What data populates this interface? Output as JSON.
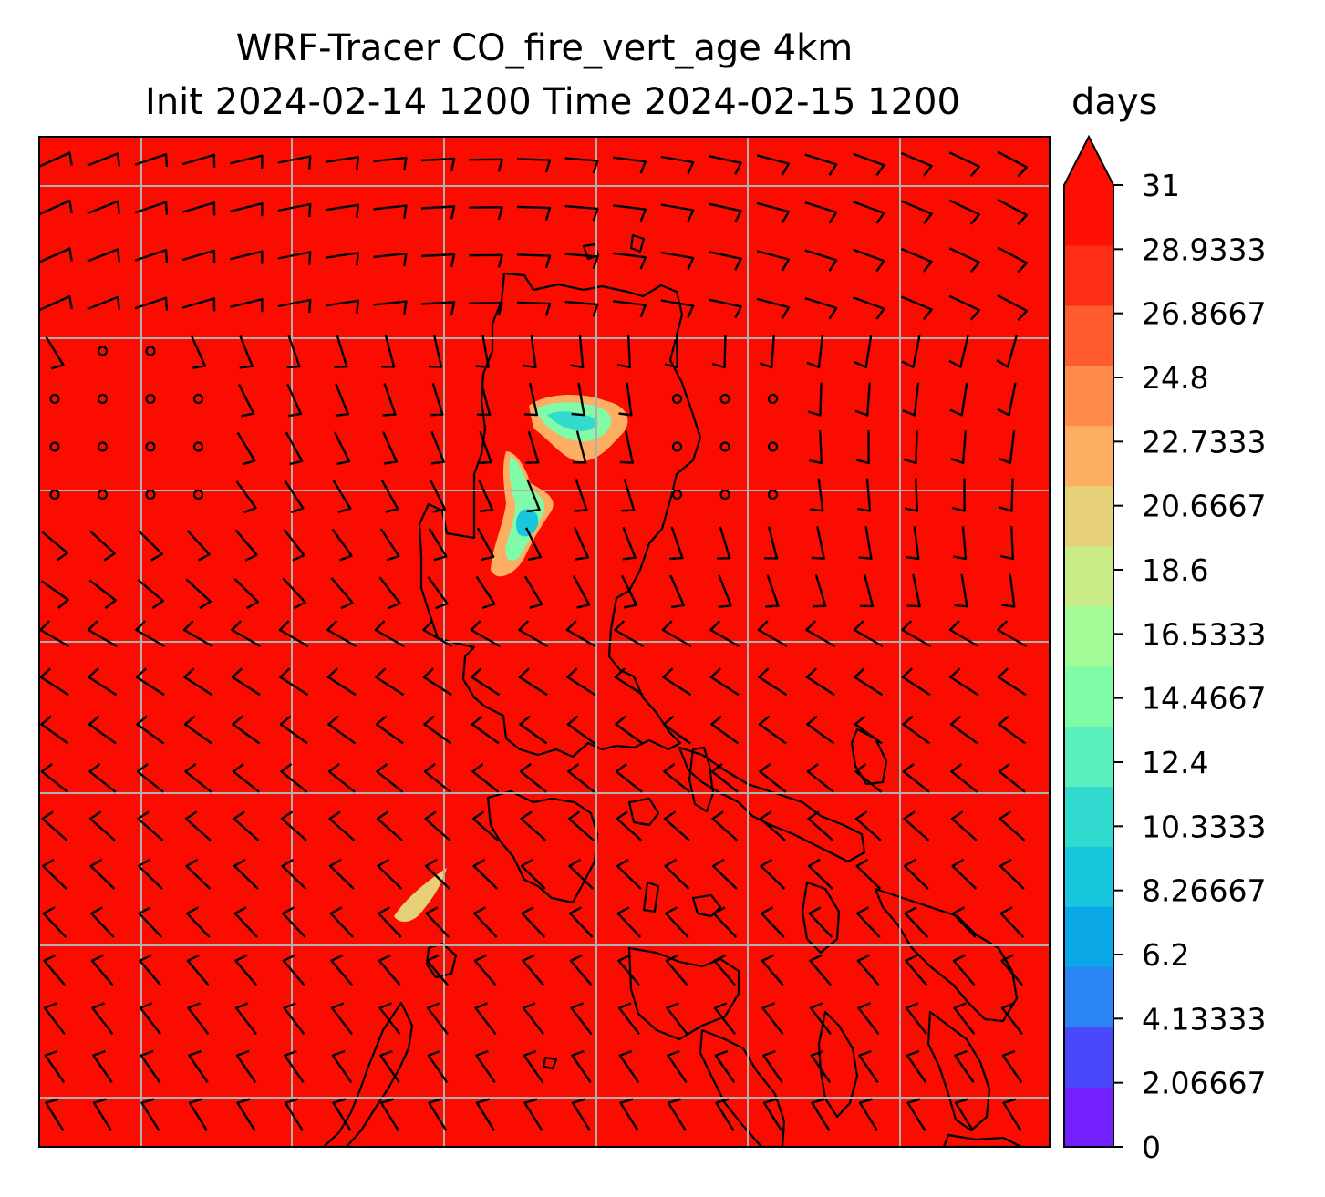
{
  "title": {
    "line1": "WRF-Tracer CO_fire_vert_age 4km",
    "line2": "Init 2024-02-14 1200 Time 2024-02-15 1200"
  },
  "colorbar": {
    "units": "days",
    "extend": "max",
    "min": 0,
    "max": 31,
    "ticks": [
      "0",
      "2.06667",
      "4.13333",
      "6.2",
      "8.26667",
      "10.3333",
      "12.4",
      "14.4667",
      "16.5333",
      "18.6",
      "20.6667",
      "22.7333",
      "24.8",
      "26.8667",
      "28.9333",
      "31"
    ],
    "colors": [
      "#7220ff",
      "#4a48fb",
      "#2a84f4",
      "#0ba8e8",
      "#18c6dd",
      "#32dbd0",
      "#5cefbe",
      "#80fba8",
      "#a2fb96",
      "#c9ec88",
      "#e6d078",
      "#fdae62",
      "#ff8a4a",
      "#ff5a30",
      "#fe2d16",
      "#fe0f04"
    ],
    "over_color": "#fe0f04"
  },
  "map": {
    "background_field_color": "#fa0c00",
    "field_value_days": 31,
    "gridlines": true,
    "plume_colors": [
      "#fdae62",
      "#e6d078",
      "#80fba8",
      "#32dbd0",
      "#18c6dd"
    ],
    "plumes": [
      {
        "region": "north-central",
        "min_age_days": 8.27
      },
      {
        "region": "central",
        "min_age_days": 8.27
      },
      {
        "region": "south-west",
        "min_age_days": 20.67
      }
    ]
  }
}
